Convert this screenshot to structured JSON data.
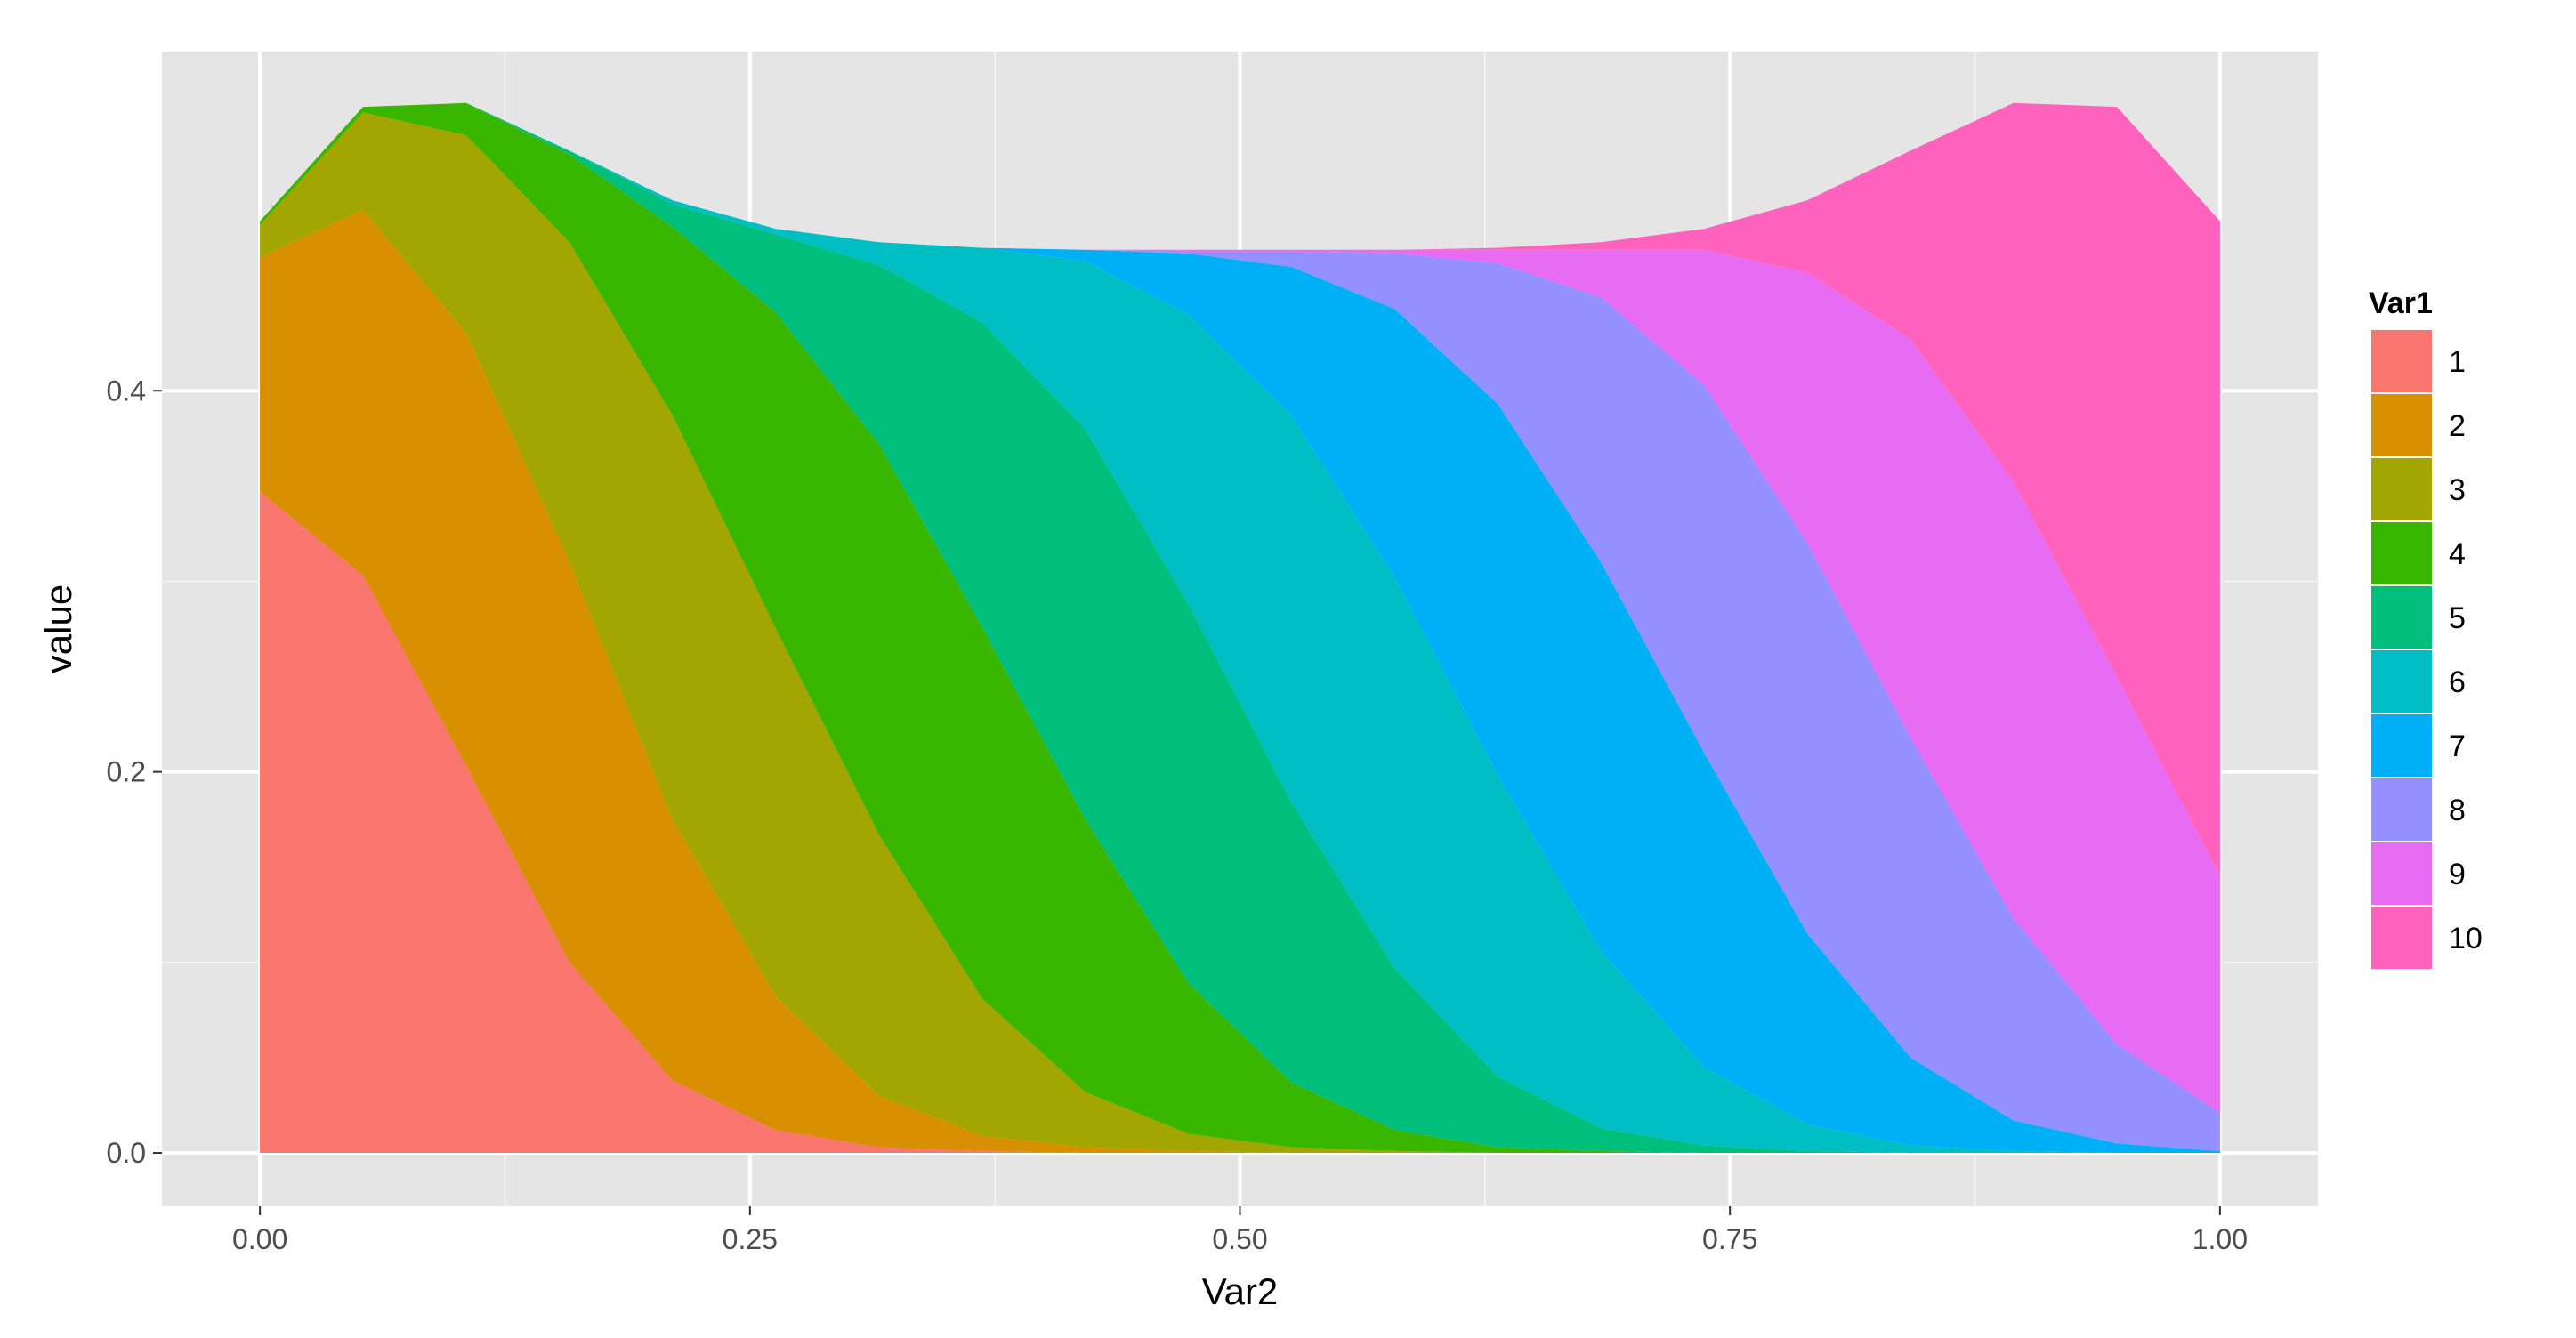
{
  "chart_data": {
    "type": "area",
    "stacked": true,
    "title": "",
    "xlabel": "Var2",
    "ylabel": "value",
    "xlim": [
      -0.05,
      1.05
    ],
    "ylim": [
      -0.028,
      0.578
    ],
    "x_ticks": [
      0,
      0.25,
      0.5,
      0.75,
      1
    ],
    "x_tick_labels": [
      "0.00",
      "0.25",
      "0.50",
      "0.75",
      "1.00"
    ],
    "y_ticks": [
      0,
      0.2,
      0.4
    ],
    "y_tick_labels": [
      "0.0",
      "0.2",
      "0.4"
    ],
    "grid": true,
    "legend": {
      "title": "Var1",
      "position": "right"
    },
    "x": [
      0,
      0.0526,
      0.1053,
      0.1579,
      0.2105,
      0.2632,
      0.3158,
      0.3684,
      0.4211,
      0.4737,
      0.5263,
      0.5789,
      0.6316,
      0.6842,
      0.7368,
      0.7895,
      0.8421,
      0.8947,
      0.9474,
      1.0
    ],
    "series": [
      {
        "name": "1",
        "color": "#F8766D",
        "cumulative_values": [
          0.347,
          0.303,
          0.203,
          0.1,
          0.038,
          0.012,
          0.003,
          0.001,
          0.0,
          0.0,
          0.0,
          0.0,
          0.0,
          0.0,
          0.0,
          0.0,
          0.0,
          0.0,
          0.0,
          0.0
        ]
      },
      {
        "name": "2",
        "color": "#D89000",
        "cumulative_values": [
          0.47,
          0.495,
          0.43,
          0.31,
          0.175,
          0.082,
          0.03,
          0.009,
          0.003,
          0.001,
          0.0,
          0.0,
          0.0,
          0.0,
          0.0,
          0.0,
          0.0,
          0.0,
          0.0,
          0.0
        ]
      },
      {
        "name": "3",
        "color": "#A3A500",
        "cumulative_values": [
          0.487,
          0.546,
          0.534,
          0.478,
          0.387,
          0.275,
          0.167,
          0.081,
          0.032,
          0.01,
          0.003,
          0.001,
          0.0,
          0.0,
          0.0,
          0.0,
          0.0,
          0.0,
          0.0,
          0.0
        ]
      },
      {
        "name": "4",
        "color": "#39B600",
        "cumulative_values": [
          0.489,
          0.549,
          0.551,
          0.524,
          0.486,
          0.441,
          0.372,
          0.276,
          0.175,
          0.089,
          0.037,
          0.012,
          0.003,
          0.001,
          0.0,
          0.0,
          0.0,
          0.0,
          0.0,
          0.0
        ]
      },
      {
        "name": "5",
        "color": "#00BF7D",
        "cumulative_values": [
          0.489,
          0.549,
          0.551,
          0.526,
          0.498,
          0.482,
          0.466,
          0.436,
          0.38,
          0.288,
          0.184,
          0.097,
          0.04,
          0.013,
          0.004,
          0.001,
          0.0,
          0.0,
          0.0,
          0.0
        ]
      },
      {
        "name": "6",
        "color": "#00BFC4",
        "cumulative_values": [
          0.489,
          0.549,
          0.551,
          0.526,
          0.5,
          0.485,
          0.478,
          0.475,
          0.468,
          0.44,
          0.387,
          0.302,
          0.198,
          0.106,
          0.045,
          0.015,
          0.004,
          0.001,
          0.0,
          0.0
        ]
      },
      {
        "name": "7",
        "color": "#00B0F6",
        "cumulative_values": [
          0.489,
          0.549,
          0.551,
          0.526,
          0.5,
          0.485,
          0.478,
          0.475,
          0.474,
          0.472,
          0.465,
          0.443,
          0.393,
          0.31,
          0.21,
          0.115,
          0.05,
          0.017,
          0.005,
          0.001
        ]
      },
      {
        "name": "8",
        "color": "#9590FF",
        "cumulative_values": [
          0.489,
          0.549,
          0.551,
          0.526,
          0.5,
          0.485,
          0.478,
          0.475,
          0.474,
          0.473,
          0.473,
          0.472,
          0.467,
          0.449,
          0.403,
          0.32,
          0.218,
          0.123,
          0.057,
          0.021
        ]
      },
      {
        "name": "9",
        "color": "#E76BF3",
        "cumulative_values": [
          0.489,
          0.549,
          0.551,
          0.526,
          0.5,
          0.485,
          0.478,
          0.475,
          0.474,
          0.474,
          0.474,
          0.474,
          0.474,
          0.474,
          0.474,
          0.462,
          0.427,
          0.352,
          0.25,
          0.145
        ]
      },
      {
        "name": "10",
        "color": "#FF62BC",
        "cumulative_values": [
          0.489,
          0.549,
          0.551,
          0.526,
          0.5,
          0.485,
          0.478,
          0.475,
          0.474,
          0.474,
          0.474,
          0.474,
          0.475,
          0.478,
          0.485,
          0.5,
          0.526,
          0.551,
          0.549,
          0.489
        ]
      }
    ]
  }
}
